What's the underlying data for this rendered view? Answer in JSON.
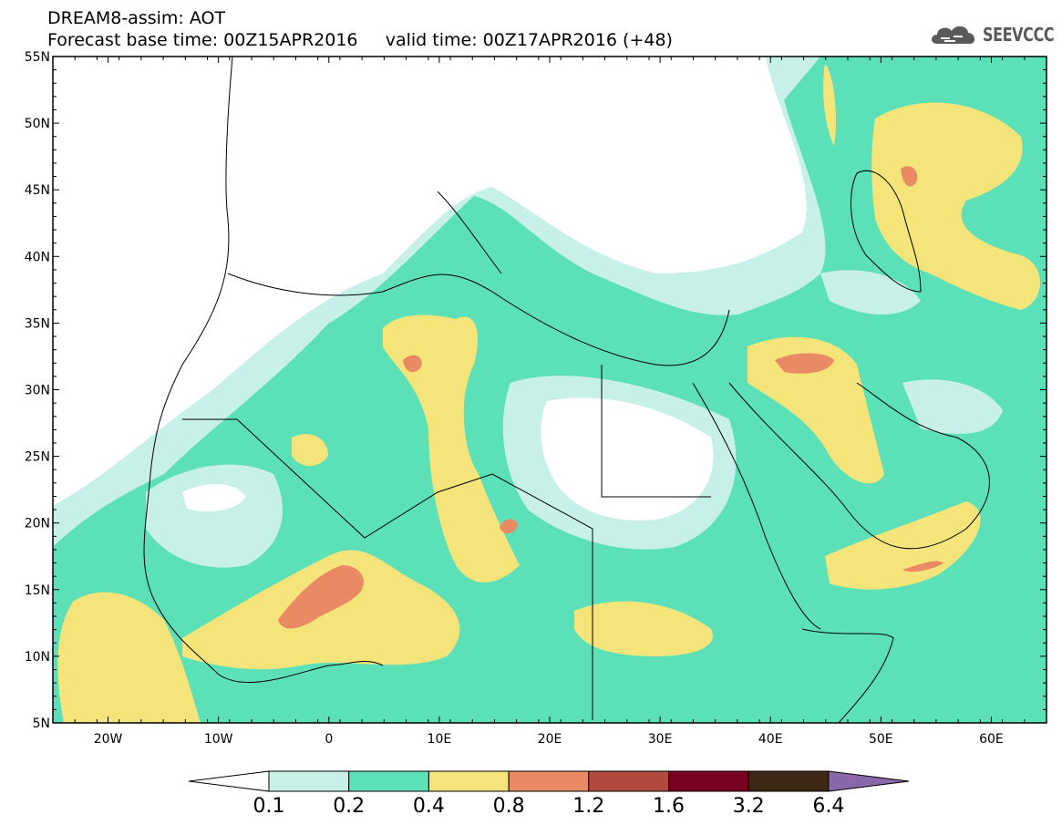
{
  "header": {
    "model_title": "DREAM8-assim: AOT",
    "base_time_label": "Forecast base time: 00Z15APR2016",
    "valid_time_label": "valid time: 00Z17APR2016 (+48)"
  },
  "logo": {
    "text": "SEEVCCC",
    "icon": "cloud-icon"
  },
  "map": {
    "lon_range": [
      -25,
      65
    ],
    "lat_range": [
      5,
      55
    ],
    "lat_ticks": [
      "5N",
      "10N",
      "15N",
      "20N",
      "25N",
      "30N",
      "35N",
      "40N",
      "45N",
      "50N",
      "55N"
    ],
    "lon_ticks": [
      "20W",
      "10W",
      "0",
      "10E",
      "20E",
      "30E",
      "40E",
      "50E",
      "60E"
    ]
  },
  "colorbar": {
    "levels": [
      "0.1",
      "0.2",
      "0.4",
      "0.8",
      "1.2",
      "1.6",
      "3.2",
      "6.4"
    ],
    "colors": [
      "#ffffff",
      "#c6f0e8",
      "#5ce0b8",
      "#f4e47a",
      "#e98a64",
      "#b14a3c",
      "#7a0020",
      "#3c2814",
      "#8a66aa"
    ]
  }
}
